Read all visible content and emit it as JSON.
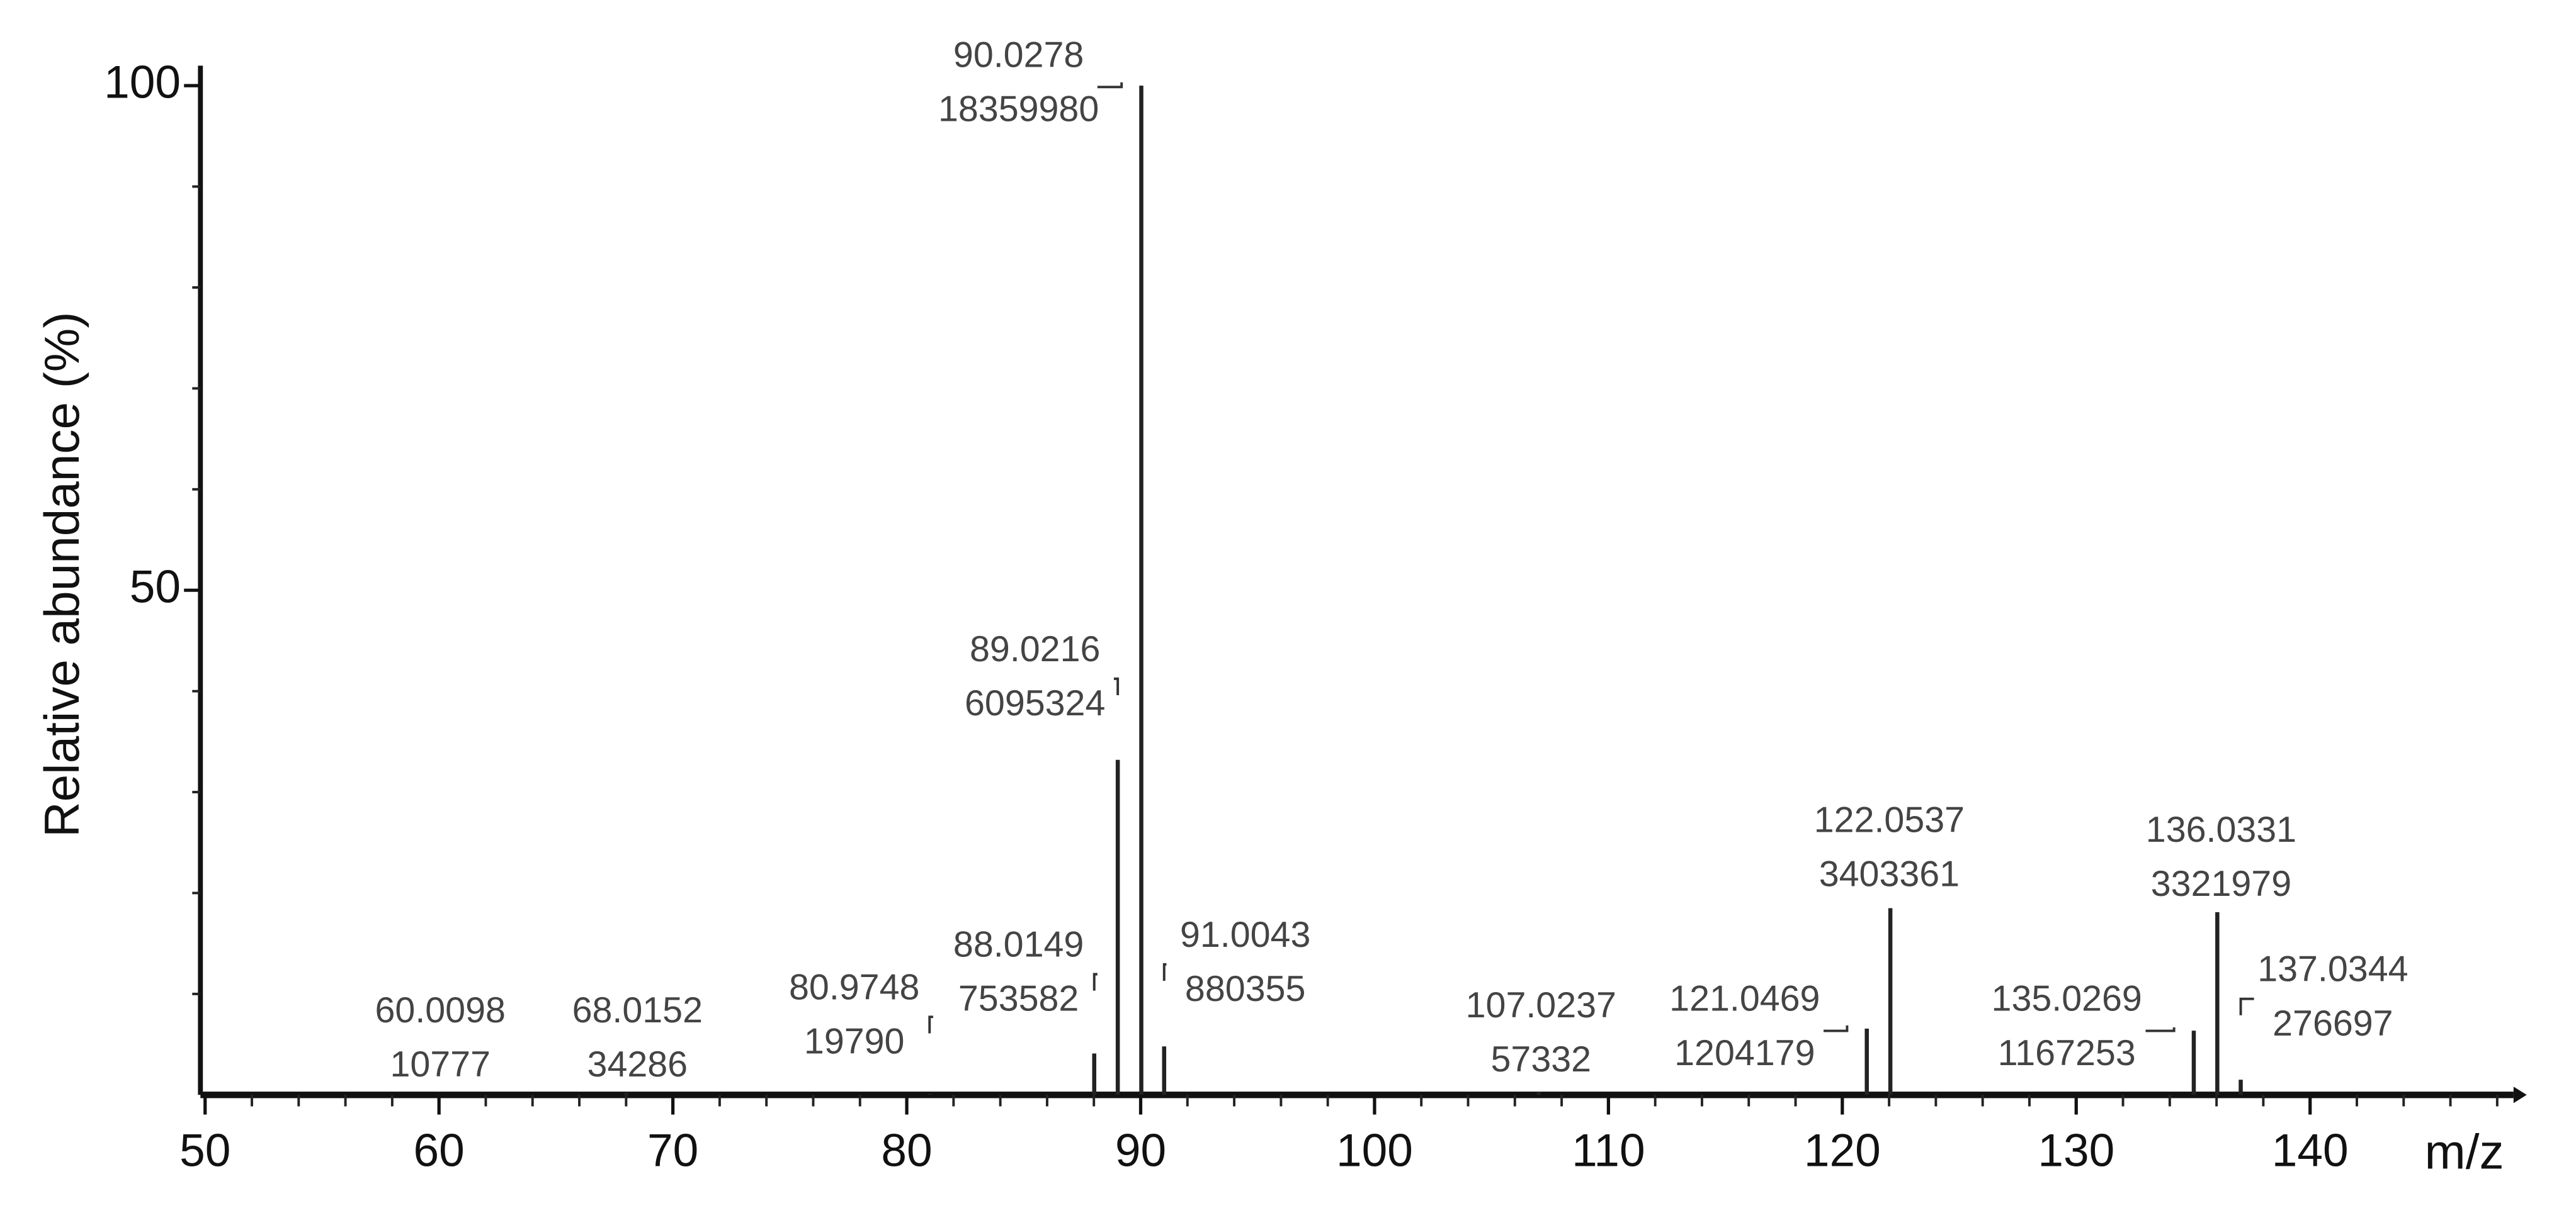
{
  "chart_data": {
    "type": "stem",
    "ylabel": "Relative abundance (%)",
    "xlabel": "m/z",
    "x": [
      60.0098,
      68.0152,
      80.9748,
      88.0149,
      89.0216,
      90.0278,
      91.0043,
      107.0237,
      121.0469,
      122.0537,
      135.0269,
      136.0331,
      137.0344
    ],
    "x_labels": [
      "60.0098",
      "68.0152",
      "80.9748",
      "88.0149",
      "89.0216",
      "90.0278",
      "91.0043",
      "107.0237",
      "121.0469",
      "122.0537",
      "135.0269",
      "136.0331",
      "137.0344"
    ],
    "intensities": [
      10777,
      34286,
      19790,
      753582,
      6095324,
      18359980,
      880355,
      57332,
      1204179,
      3403361,
      1167253,
      3321979,
      276697
    ],
    "values": [
      0.06,
      0.19,
      0.11,
      4.1,
      33.2,
      100,
      4.8,
      0.31,
      6.56,
      18.5,
      6.36,
      18.1,
      1.5
    ],
    "color": "#222222",
    "xlim": [
      49.8,
      148.7
    ],
    "xticks": [
      50,
      60,
      70,
      80,
      90,
      100,
      110,
      120,
      130,
      140
    ],
    "ylim": [
      0,
      101
    ],
    "yticks": [
      50,
      100
    ]
  }
}
